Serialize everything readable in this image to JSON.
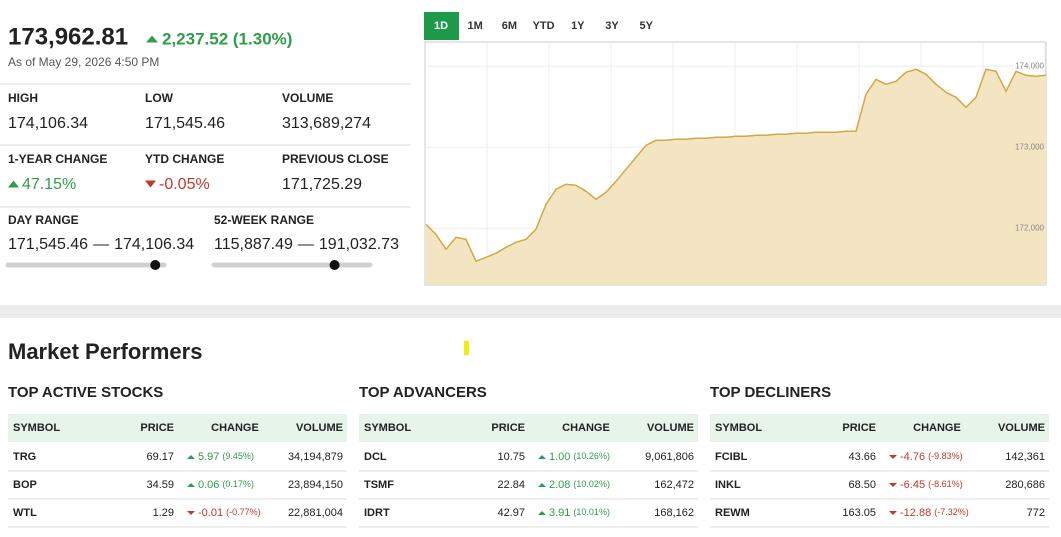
{
  "quote": {
    "price": {
      "value": 173962.81,
      "label": "173,962.81"
    },
    "change": "2,237.52 (1.30%)",
    "direction": "up",
    "as_of": "As of May 29, 2026 4:50 PM"
  },
  "stats": [
    [
      {
        "label": "HIGH",
        "value": "174,106.34"
      },
      {
        "label": "LOW",
        "value": "171,545.46"
      },
      {
        "label": "VOLUME",
        "value": "313,689,274"
      }
    ],
    [
      {
        "label": "1-YEAR CHANGE",
        "value": "47.15%",
        "direction": "up"
      },
      {
        "label": "YTD CHANGE",
        "value": "-0.05%",
        "direction": "down"
      },
      {
        "label": "PREVIOUS CLOSE",
        "value": "171,725.29"
      }
    ]
  ],
  "ranges": [
    {
      "label": "DAY RANGE",
      "low": {
        "value": 171545.46,
        "label": "171,545.46"
      },
      "separator": "—",
      "high": {
        "value": 174106.34,
        "label": "174,106.34"
      }
    },
    {
      "label": "52-WEEK RANGE",
      "low": {
        "value": 115887.49,
        "label": "115,887.49"
      },
      "separator": "—",
      "high": {
        "value": 191032.73,
        "label": "191,032.73"
      }
    }
  ],
  "timeframes": [
    "1D",
    "1M",
    "6M",
    "YTD",
    "1Y",
    "3Y",
    "5Y"
  ],
  "active_timeframe": "1D",
  "chart_data": {
    "type": "area",
    "color": "#d4a843",
    "fill": "#f3e4c2",
    "values": [
      172049,
      171926,
      171741,
      171889,
      171864,
      171593,
      171642,
      171691,
      171765,
      171827,
      171864,
      171988,
      172296,
      172481,
      172543,
      172531,
      172457,
      172358,
      172444,
      172580,
      172728,
      172877,
      173025,
      173086,
      173086,
      173099,
      173099,
      173111,
      173111,
      173123,
      173123,
      173136,
      173136,
      173148,
      173148,
      173160,
      173160,
      173173,
      173173,
      173185,
      173185,
      173185,
      173198,
      173198,
      173654,
      173840,
      173778,
      173815,
      173926,
      173963,
      173901,
      173778,
      173679,
      173617,
      173494,
      173617,
      173963,
      173938,
      173691,
      173938,
      173889,
      173877,
      173889
    ],
    "ylim": [
      171300,
      174300
    ],
    "yticks": [
      {
        "value": 172000,
        "label": "172,000"
      },
      {
        "value": 173000,
        "label": "173,000"
      },
      {
        "value": 174000,
        "label": "174,000"
      }
    ],
    "grid": true
  },
  "performers": {
    "title": "Market Performers",
    "columns": [
      "SYMBOL",
      "PRICE",
      "CHANGE",
      "VOLUME"
    ],
    "tables": [
      {
        "title": "TOP ACTIVE STOCKS",
        "rows": [
          {
            "symbol": "TRG",
            "price": "69.17",
            "change": "5.97",
            "percent": "(9.45%)",
            "direction": "up",
            "volume": "34,194,879"
          },
          {
            "symbol": "BOP",
            "price": "34.59",
            "change": "0.06",
            "percent": "(0.17%)",
            "direction": "up",
            "volume": "23,894,150"
          },
          {
            "symbol": "WTL",
            "price": "1.29",
            "change": "-0.01",
            "percent": "(-0.77%)",
            "direction": "down",
            "volume": "22,881,004"
          }
        ]
      },
      {
        "title": "TOP ADVANCERS",
        "rows": [
          {
            "symbol": "DCL",
            "price": "10.75",
            "change": "1.00",
            "percent": "(10.26%)",
            "direction": "up",
            "volume": "9,061,806"
          },
          {
            "symbol": "TSMF",
            "price": "22.84",
            "change": "2.08",
            "percent": "(10.02%)",
            "direction": "up",
            "volume": "162,472"
          },
          {
            "symbol": "IDRT",
            "price": "42.97",
            "change": "3.91",
            "percent": "(10.01%)",
            "direction": "up",
            "volume": "168,162"
          }
        ]
      },
      {
        "title": "TOP DECLINERS",
        "rows": [
          {
            "symbol": "FCIBL",
            "price": "43.66",
            "change": "-4.76",
            "percent": "(-9.83%)",
            "direction": "down",
            "volume": "142,361"
          },
          {
            "symbol": "INKL",
            "price": "68.50",
            "change": "-6.45",
            "percent": "(-8.61%)",
            "direction": "down",
            "volume": "280,686"
          },
          {
            "symbol": "REWM",
            "price": "163.05",
            "change": "-12.88",
            "percent": "(-7.32%)",
            "direction": "down",
            "volume": "772"
          }
        ]
      }
    ]
  }
}
